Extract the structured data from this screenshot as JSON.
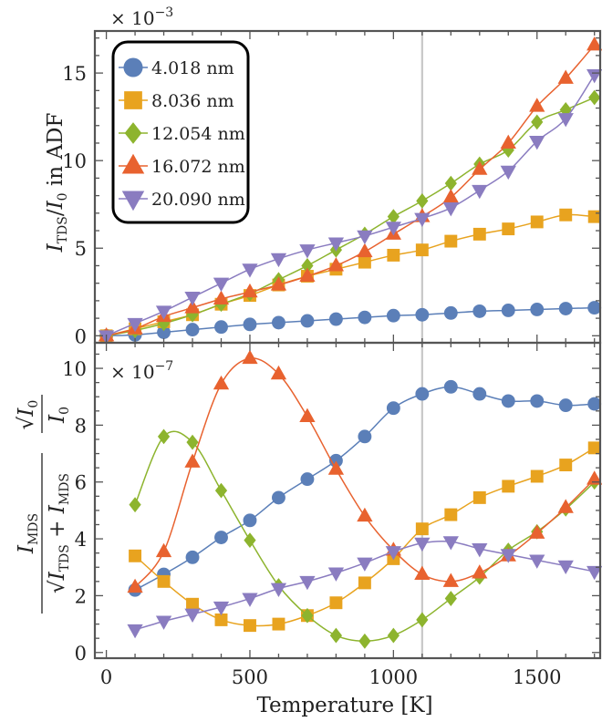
{
  "chart_data": [
    {
      "type": "line",
      "panel": "top",
      "xlabel": "",
      "ylabel": "I_TDS / I_0 in ADF",
      "ylabel_parts": {
        "main": "I",
        "sub": "TDS",
        "sep": "/",
        "main2": "I",
        "sub2": "0",
        "rest": " in ADF"
      },
      "scale_label": {
        "prefix": "× 10",
        "exponent": "−3"
      },
      "xlim": [
        -40,
        1720
      ],
      "ylim": [
        -0.4,
        17.4
      ],
      "yticks": [
        0,
        5,
        10,
        15
      ],
      "legend": {
        "placement": "top-left"
      },
      "marker_line": {
        "x": 1100
      },
      "series": [
        {
          "name": "4.018 nm",
          "color": "#5b7fb8",
          "marker": "circle",
          "x": [
            0,
            100,
            200,
            300,
            400,
            500,
            600,
            700,
            800,
            900,
            1000,
            1100,
            1200,
            1300,
            1400,
            1500,
            1600,
            1700
          ],
          "y": [
            0,
            0.05,
            0.2,
            0.35,
            0.5,
            0.65,
            0.75,
            0.85,
            0.95,
            1.05,
            1.15,
            1.2,
            1.3,
            1.4,
            1.45,
            1.5,
            1.55,
            1.6
          ]
        },
        {
          "name": "8.036 nm",
          "color": "#e8a31f",
          "marker": "square",
          "x": [
            0,
            100,
            200,
            300,
            400,
            500,
            600,
            700,
            800,
            900,
            1000,
            1100,
            1200,
            1300,
            1400,
            1500,
            1600,
            1700
          ],
          "y": [
            0,
            0.4,
            0.8,
            1.2,
            1.8,
            2.3,
            2.9,
            3.4,
            3.8,
            4.2,
            4.6,
            4.9,
            5.4,
            5.8,
            6.1,
            6.5,
            6.9,
            6.8
          ]
        },
        {
          "name": "12.054 nm",
          "color": "#8db42e",
          "marker": "diamond",
          "x": [
            0,
            100,
            200,
            300,
            400,
            500,
            600,
            700,
            800,
            900,
            1000,
            1100,
            1200,
            1300,
            1400,
            1500,
            1600,
            1700
          ],
          "y": [
            0,
            0.3,
            0.7,
            1.2,
            1.8,
            2.4,
            3.2,
            4.0,
            4.9,
            5.8,
            6.8,
            7.7,
            8.7,
            9.8,
            10.6,
            12.2,
            12.9,
            13.6
          ]
        },
        {
          "name": "16.072 nm",
          "color": "#e8622f",
          "marker": "triangle-up",
          "x": [
            0,
            100,
            200,
            300,
            400,
            500,
            600,
            700,
            800,
            900,
            1000,
            1100,
            1200,
            1300,
            1400,
            1500,
            1600,
            1700
          ],
          "y": [
            0,
            0.4,
            1.1,
            1.6,
            2.1,
            2.5,
            2.9,
            3.4,
            4.0,
            4.8,
            5.8,
            6.8,
            7.9,
            9.5,
            11.0,
            13.1,
            14.7,
            16.6
          ]
        },
        {
          "name": "20.090 nm",
          "color": "#8a7cc0",
          "marker": "triangle-down",
          "x": [
            0,
            100,
            200,
            300,
            400,
            500,
            600,
            700,
            800,
            900,
            1000,
            1100,
            1200,
            1300,
            1400,
            1500,
            1600,
            1700
          ],
          "y": [
            0,
            0.7,
            1.4,
            2.2,
            3.0,
            3.8,
            4.4,
            4.9,
            5.3,
            5.7,
            6.2,
            6.7,
            7.3,
            8.3,
            9.4,
            11.1,
            12.4,
            14.9
          ]
        }
      ]
    },
    {
      "type": "line",
      "panel": "bottom",
      "xlabel": "Temperature [K]",
      "ylabel": "I_MDS / sqrt(I_TDS + I_MDS) · sqrt(I_0) / I_0",
      "ylabel_parts": {
        "num": "I",
        "num_sub": "MDS",
        "den": "I",
        "den_sub": "TDS",
        "plus": " + ",
        "den2": "I",
        "den2_sub": "MDS",
        "frac2_num": "I",
        "frac2_num_sub": "0",
        "frac2_den": "I",
        "frac2_den_sub": "0"
      },
      "scale_label": {
        "prefix": "× 10",
        "exponent": "−7"
      },
      "xlim": [
        -40,
        1720
      ],
      "ylim": [
        -0.2,
        10.9
      ],
      "xticks": [
        0,
        500,
        1000,
        1500
      ],
      "yticks": [
        0,
        2,
        4,
        6,
        8,
        10
      ],
      "marker_line": {
        "x": 1100
      },
      "series": [
        {
          "name": "4.018 nm",
          "color": "#5b7fb8",
          "marker": "circle",
          "x": [
            100,
            200,
            300,
            400,
            500,
            600,
            700,
            800,
            900,
            1000,
            1100,
            1200,
            1300,
            1400,
            1500,
            1600,
            1700
          ],
          "y": [
            2.2,
            2.75,
            3.35,
            4.05,
            4.65,
            5.45,
            6.1,
            6.75,
            7.6,
            8.6,
            9.1,
            9.35,
            9.1,
            8.85,
            8.85,
            8.7,
            8.75
          ]
        },
        {
          "name": "8.036 nm",
          "color": "#e8a31f",
          "marker": "square",
          "x": [
            100,
            200,
            300,
            400,
            500,
            600,
            700,
            800,
            900,
            1000,
            1100,
            1200,
            1300,
            1400,
            1500,
            1600,
            1700
          ],
          "y": [
            3.4,
            2.5,
            1.7,
            1.15,
            0.95,
            1.0,
            1.3,
            1.75,
            2.45,
            3.3,
            4.35,
            4.85,
            5.45,
            5.85,
            6.2,
            6.6,
            7.2
          ]
        },
        {
          "name": "12.054 nm",
          "color": "#8db42e",
          "marker": "diamond",
          "x": [
            100,
            200,
            300,
            400,
            500,
            600,
            700,
            800,
            900,
            1000,
            1100,
            1200,
            1300,
            1400,
            1500,
            1600,
            1700
          ],
          "y": [
            5.2,
            7.6,
            7.4,
            5.7,
            3.95,
            2.35,
            1.3,
            0.6,
            0.4,
            0.6,
            1.15,
            1.9,
            2.65,
            3.6,
            4.25,
            5.05,
            6.0
          ]
        },
        {
          "name": "16.072 nm",
          "color": "#e8622f",
          "marker": "triangle-up",
          "x": [
            100,
            200,
            300,
            400,
            500,
            600,
            700,
            800,
            900,
            1000,
            1100,
            1200,
            1300,
            1400,
            1500,
            1600,
            1700
          ],
          "y": [
            2.3,
            3.55,
            6.7,
            9.45,
            10.35,
            9.8,
            8.3,
            6.45,
            4.8,
            3.6,
            2.75,
            2.5,
            2.8,
            3.4,
            4.2,
            5.1,
            6.1
          ]
        },
        {
          "name": "20.090 nm",
          "color": "#8a7cc0",
          "marker": "triangle-down",
          "x": [
            100,
            200,
            300,
            400,
            500,
            600,
            700,
            800,
            900,
            1000,
            1100,
            1200,
            1300,
            1400,
            1500,
            1600,
            1700
          ],
          "y": [
            0.8,
            1.1,
            1.35,
            1.6,
            1.9,
            2.25,
            2.5,
            2.8,
            3.15,
            3.55,
            3.85,
            3.9,
            3.65,
            3.45,
            3.25,
            3.05,
            2.85
          ]
        }
      ]
    }
  ]
}
